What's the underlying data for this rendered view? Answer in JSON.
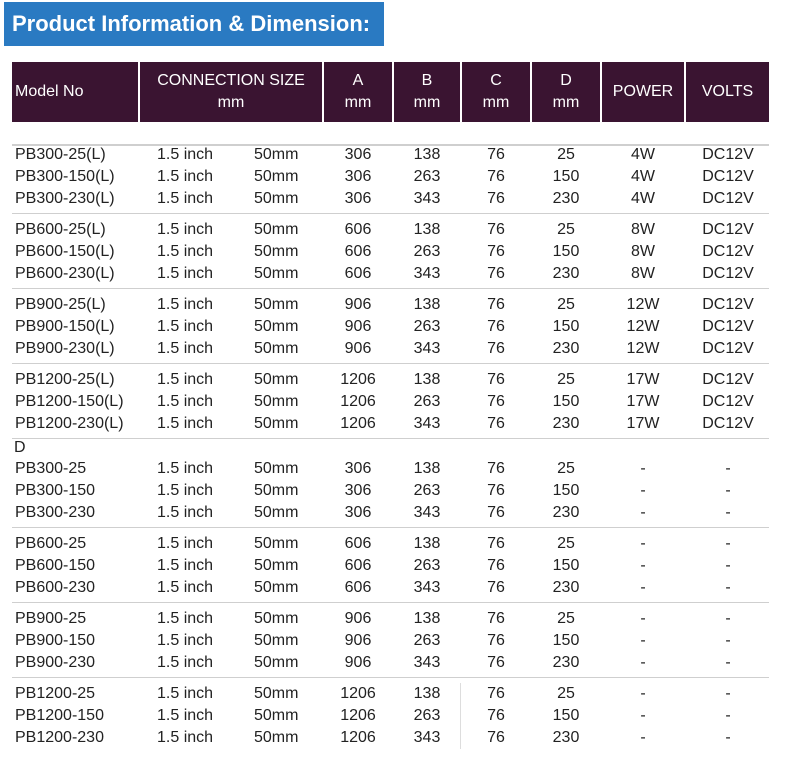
{
  "title": "Product Information & Dimension:",
  "header": [
    {
      "line1": "Model No",
      "line2": ""
    },
    {
      "line1": "CONNECTION SIZE",
      "line2": "mm"
    },
    {
      "line1": "A",
      "line2": "mm"
    },
    {
      "line1": "B",
      "line2": "mm"
    },
    {
      "line1": "C",
      "line2": "mm"
    },
    {
      "line1": "D",
      "line2": "mm"
    },
    {
      "line1": "POWER",
      "line2": ""
    },
    {
      "line1": "VOLTS",
      "line2": ""
    }
  ],
  "section_label": "D",
  "rows": [
    {
      "model": "PB300-25(L)",
      "inch": "1.5 inch",
      "mm": "50mm",
      "a": "306",
      "b": "138",
      "c": "76",
      "d": "25",
      "power": "4W",
      "volts": "DC12V"
    },
    {
      "model": "PB300-150(L)",
      "inch": "1.5 inch",
      "mm": "50mm",
      "a": "306",
      "b": "263",
      "c": "76",
      "d": "150",
      "power": "4W",
      "volts": "DC12V"
    },
    {
      "model": "PB300-230(L)",
      "inch": "1.5 inch",
      "mm": "50mm",
      "a": "306",
      "b": "343",
      "c": "76",
      "d": "230",
      "power": "4W",
      "volts": "DC12V"
    },
    {
      "model": "PB600-25(L)",
      "inch": "1.5 inch",
      "mm": "50mm",
      "a": "606",
      "b": "138",
      "c": "76",
      "d": "25",
      "power": "8W",
      "volts": "DC12V"
    },
    {
      "model": "PB600-150(L)",
      "inch": "1.5 inch",
      "mm": "50mm",
      "a": "606",
      "b": "263",
      "c": "76",
      "d": "150",
      "power": "8W",
      "volts": "DC12V"
    },
    {
      "model": "PB600-230(L)",
      "inch": "1.5 inch",
      "mm": "50mm",
      "a": "606",
      "b": "343",
      "c": "76",
      "d": "230",
      "power": "8W",
      "volts": "DC12V"
    },
    {
      "model": "PB900-25(L)",
      "inch": "1.5 inch",
      "mm": "50mm",
      "a": "906",
      "b": "138",
      "c": "76",
      "d": "25",
      "power": "12W",
      "volts": "DC12V"
    },
    {
      "model": "PB900-150(L)",
      "inch": "1.5 inch",
      "mm": "50mm",
      "a": "906",
      "b": "263",
      "c": "76",
      "d": "150",
      "power": "12W",
      "volts": "DC12V"
    },
    {
      "model": "PB900-230(L)",
      "inch": "1.5 inch",
      "mm": "50mm",
      "a": "906",
      "b": "343",
      "c": "76",
      "d": "230",
      "power": "12W",
      "volts": "DC12V"
    },
    {
      "model": "PB1200-25(L)",
      "inch": "1.5 inch",
      "mm": "50mm",
      "a": "1206",
      "b": "138",
      "c": "76",
      "d": "25",
      "power": "17W",
      "volts": "DC12V"
    },
    {
      "model": "PB1200-150(L)",
      "inch": "1.5 inch",
      "mm": "50mm",
      "a": "1206",
      "b": "263",
      "c": "76",
      "d": "150",
      "power": "17W",
      "volts": "DC12V"
    },
    {
      "model": "PB1200-230(L)",
      "inch": "1.5 inch",
      "mm": "50mm",
      "a": "1206",
      "b": "343",
      "c": "76",
      "d": "230",
      "power": "17W",
      "volts": "DC12V"
    },
    {
      "model": "PB300-25",
      "inch": "1.5 inch",
      "mm": "50mm",
      "a": "306",
      "b": "138",
      "c": "76",
      "d": "25",
      "power": "-",
      "volts": "-"
    },
    {
      "model": "PB300-150",
      "inch": "1.5 inch",
      "mm": "50mm",
      "a": "306",
      "b": "263",
      "c": "76",
      "d": "150",
      "power": "-",
      "volts": "-"
    },
    {
      "model": "PB300-230",
      "inch": "1.5 inch",
      "mm": "50mm",
      "a": "306",
      "b": "343",
      "c": "76",
      "d": "230",
      "power": "-",
      "volts": "-"
    },
    {
      "model": "PB600-25",
      "inch": "1.5 inch",
      "mm": "50mm",
      "a": "606",
      "b": "138",
      "c": "76",
      "d": "25",
      "power": "-",
      "volts": "-"
    },
    {
      "model": "PB600-150",
      "inch": "1.5 inch",
      "mm": "50mm",
      "a": "606",
      "b": "263",
      "c": "76",
      "d": "150",
      "power": "-",
      "volts": "-"
    },
    {
      "model": "PB600-230",
      "inch": "1.5 inch",
      "mm": "50mm",
      "a": "606",
      "b": "343",
      "c": "76",
      "d": "230",
      "power": "-",
      "volts": "-"
    },
    {
      "model": "PB900-25",
      "inch": "1.5 inch",
      "mm": "50mm",
      "a": "906",
      "b": "138",
      "c": "76",
      "d": "25",
      "power": "-",
      "volts": "-"
    },
    {
      "model": "PB900-150",
      "inch": "1.5 inch",
      "mm": "50mm",
      "a": "906",
      "b": "263",
      "c": "76",
      "d": "150",
      "power": "-",
      "volts": "-"
    },
    {
      "model": "PB900-230",
      "inch": "1.5 inch",
      "mm": "50mm",
      "a": "906",
      "b": "343",
      "c": "76",
      "d": "230",
      "power": "-",
      "volts": "-"
    },
    {
      "model": "PB1200-25",
      "inch": "1.5 inch",
      "mm": "50mm",
      "a": "1206",
      "b": "138",
      "c": "76",
      "d": "25",
      "power": "-",
      "volts": "-"
    },
    {
      "model": "PB1200-150",
      "inch": "1.5 inch",
      "mm": "50mm",
      "a": "1206",
      "b": "263",
      "c": "76",
      "d": "150",
      "power": "-",
      "volts": "-"
    },
    {
      "model": "PB1200-230",
      "inch": "1.5 inch",
      "mm": "50mm",
      "a": "1206",
      "b": "343",
      "c": "76",
      "d": "230",
      "power": "-",
      "volts": "-"
    }
  ],
  "colors": {
    "banner": "#2a7ac2",
    "header": "#3a1431",
    "text": "#222222"
  }
}
